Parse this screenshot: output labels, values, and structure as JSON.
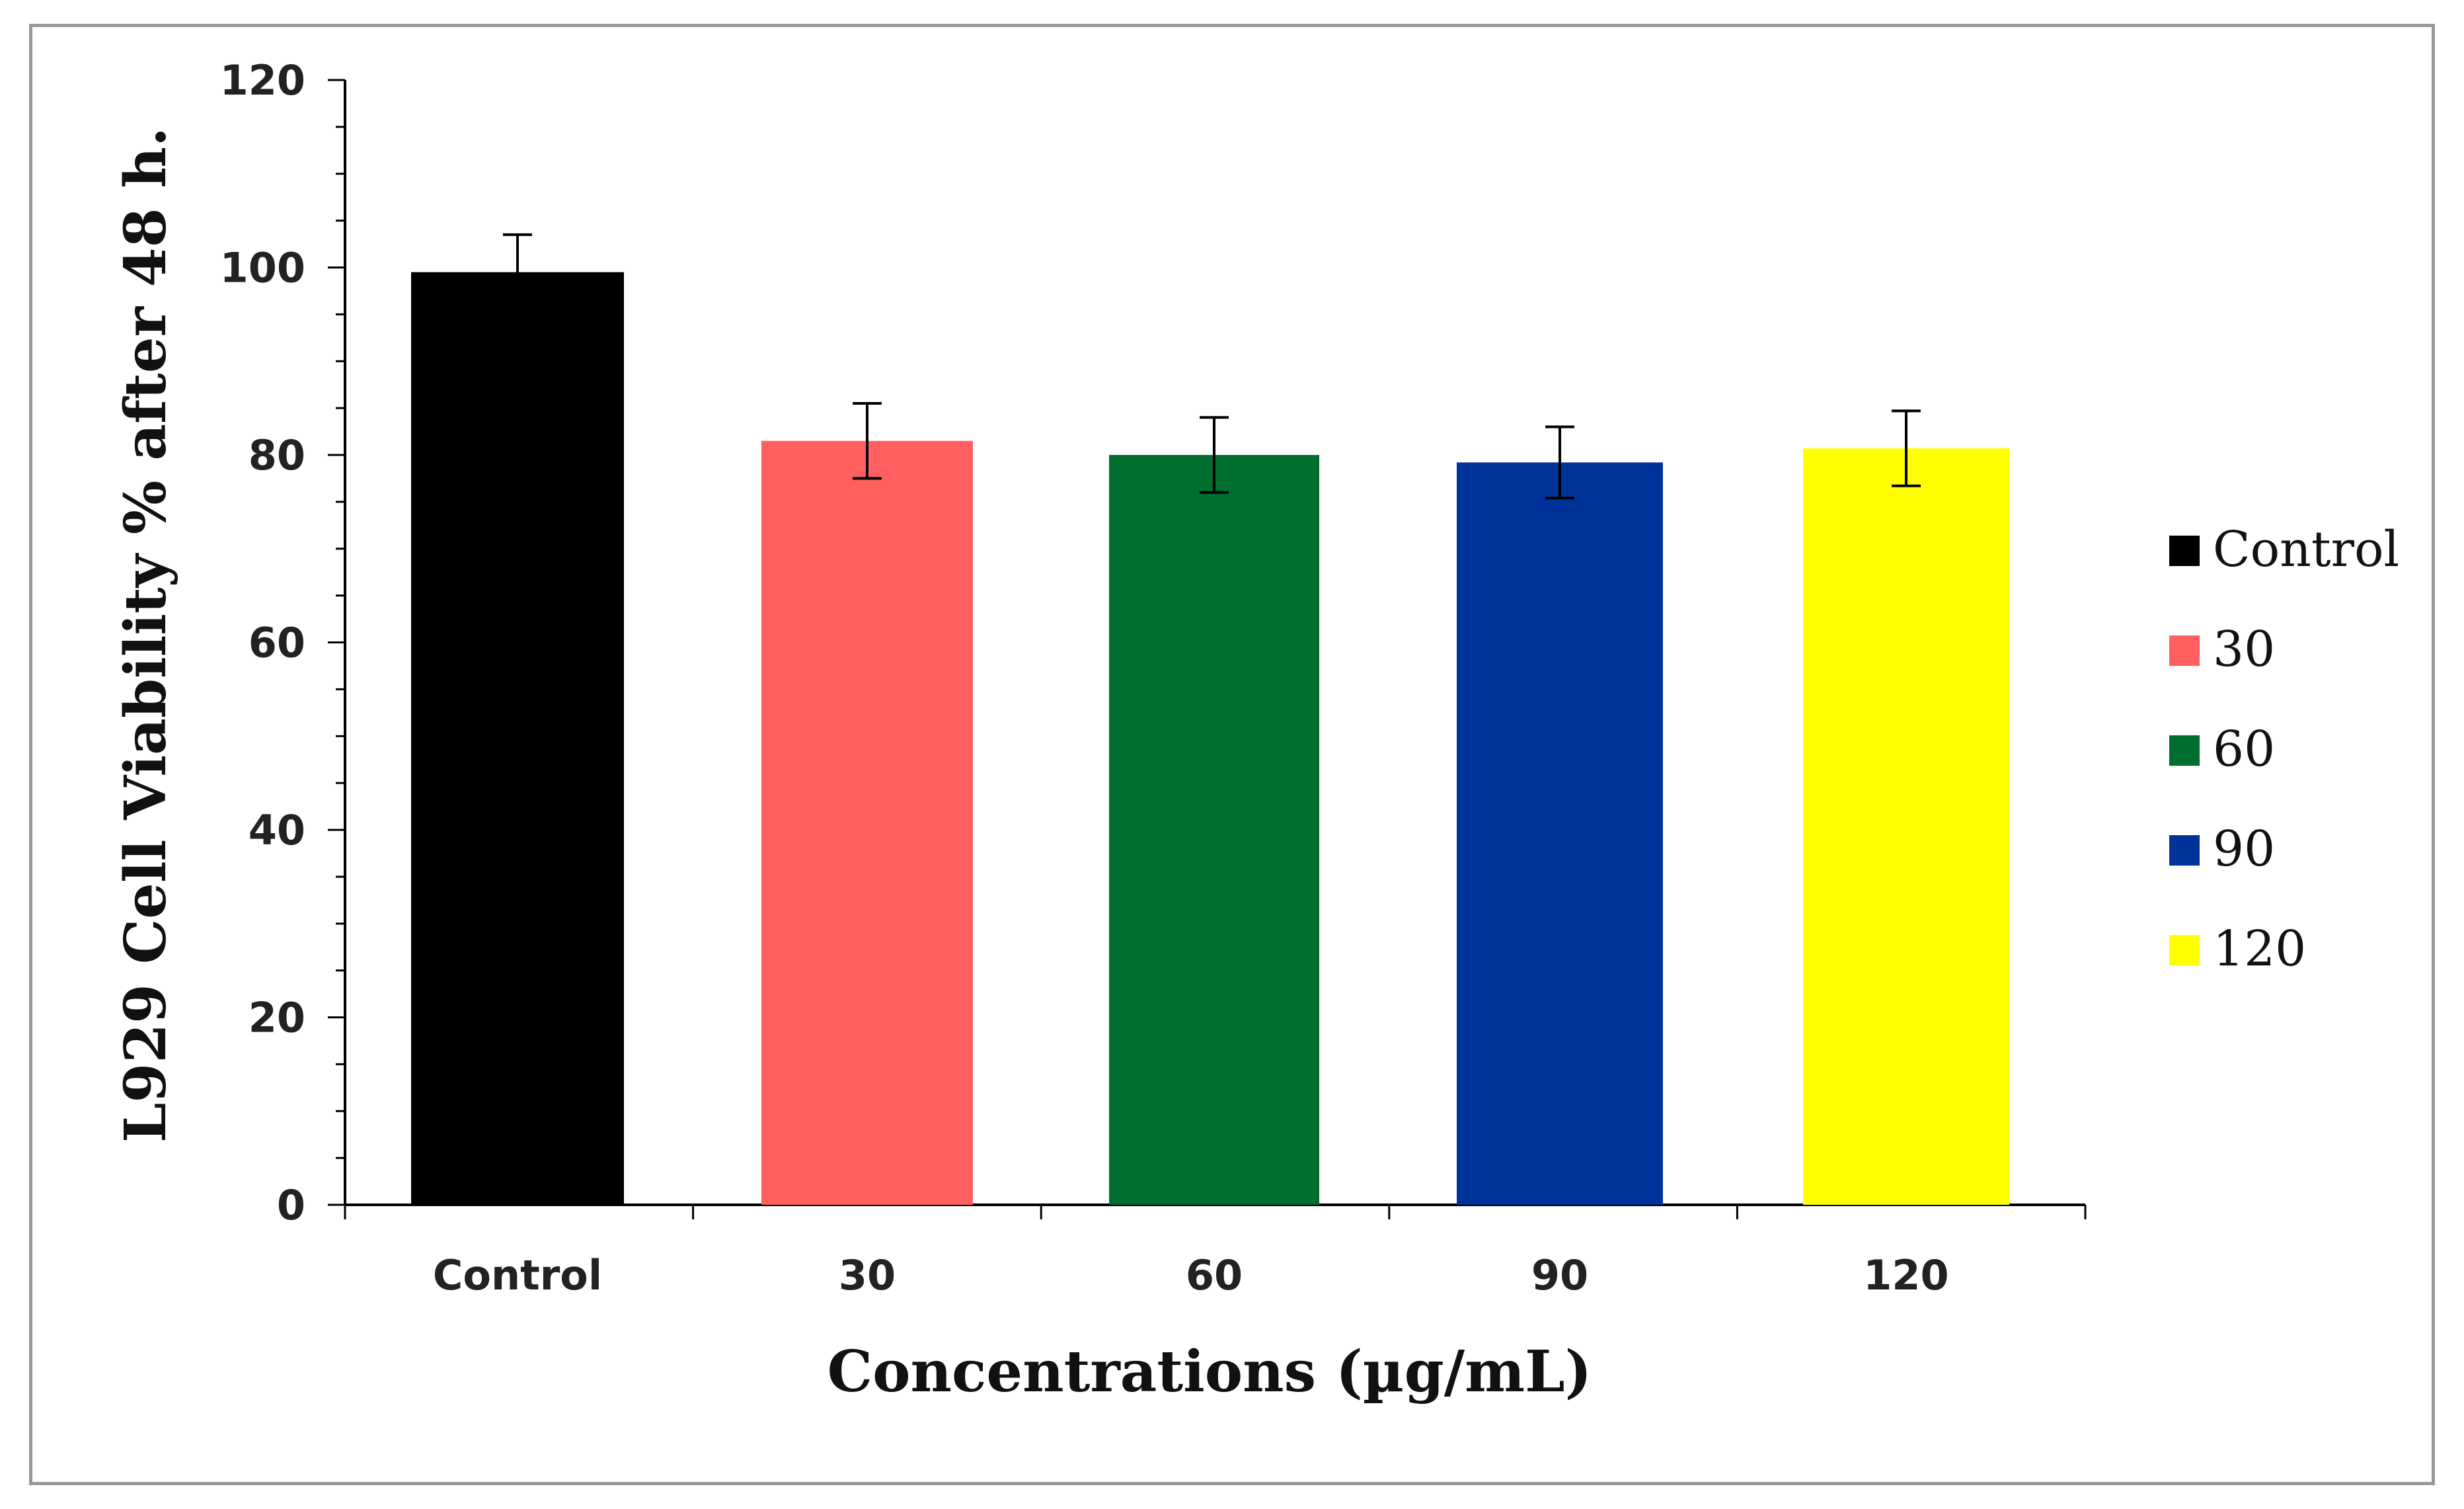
{
  "chart_data": {
    "type": "bar",
    "categories": [
      "Control",
      "30",
      "60",
      "90",
      "120"
    ],
    "values": [
      99.5,
      81.5,
      80.0,
      79.2,
      80.7
    ],
    "errors": [
      4.0,
      4.0,
      4.0,
      3.8,
      4.0
    ],
    "colors": [
      "#000000",
      "#ff5f5f",
      "#006e2e",
      "#003399",
      "#ffff00"
    ],
    "xlabel": "Concentrations (µg/mL)",
    "ylabel": "L929 Cell Viability % after 48 h.",
    "ylim": [
      0,
      120
    ],
    "yticks": [
      0,
      20,
      40,
      60,
      80,
      100,
      120
    ],
    "y_minor_step": 5,
    "grid": false,
    "legend": {
      "position": "right",
      "entries": [
        "Control",
        "30",
        "60",
        "90",
        "120"
      ]
    }
  }
}
